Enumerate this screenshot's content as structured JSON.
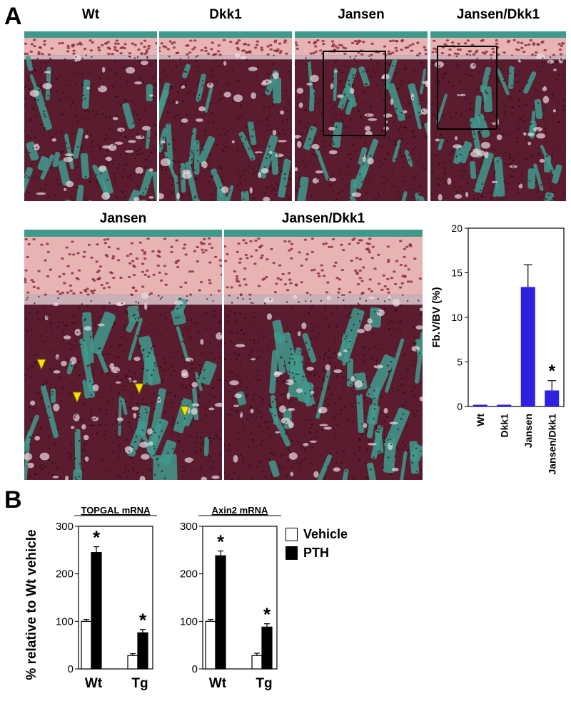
{
  "panel_a": {
    "letter": "A",
    "top_row_labels": [
      "Wt",
      "Dkk1",
      "Jansen",
      "Jansen/Dkk1"
    ],
    "middle_row_labels": [
      "Jansen",
      "Jansen/Dkk1"
    ]
  },
  "panel_b": {
    "letter": "B",
    "legend": [
      "Vehicle",
      "PTH"
    ]
  },
  "colors": {
    "stain_green": "#3f9a8c",
    "marrow": "#5a1c2e",
    "cartilage": "#e8b3b3",
    "arrow_yellow": "#f5e400",
    "bar_blue": "#2d20e0"
  },
  "chart_data": [
    {
      "type": "bar",
      "categories": [
        "Wt",
        "Dkk1",
        "Jansen",
        "Jansen/Dkk1"
      ],
      "values": [
        0.2,
        0.2,
        13.4,
        1.8
      ],
      "errors": [
        0,
        0,
        2.5,
        1.1
      ],
      "ylabel": "Fb.V/BV (%)",
      "ylim": [
        0,
        20
      ],
      "yticks": [
        "0",
        "5",
        "10",
        "15",
        "20"
      ],
      "annotations": [
        "*"
      ]
    },
    {
      "type": "bar",
      "title": "TOPGAL mRNA",
      "ylabel": "% relative to Wt vehicle",
      "categories": [
        "Wt",
        "Tg"
      ],
      "series": [
        {
          "name": "Vehicle",
          "values": [
            100,
            28
          ],
          "errors": [
            4,
            4
          ]
        },
        {
          "name": "PTH",
          "values": [
            245,
            76
          ],
          "errors": [
            12,
            7
          ]
        }
      ],
      "ylim": [
        0,
        300
      ],
      "yticks": [
        "0",
        "100",
        "200",
        "300"
      ],
      "annotations": [
        "*",
        "*"
      ]
    },
    {
      "type": "bar",
      "title": "Axin2 mRNA",
      "categories": [
        "Wt",
        "Tg"
      ],
      "series": [
        {
          "name": "Vehicle",
          "values": [
            100,
            28
          ],
          "errors": [
            4,
            5
          ]
        },
        {
          "name": "PTH",
          "values": [
            238,
            88
          ],
          "errors": [
            10,
            7
          ]
        }
      ],
      "ylim": [
        0,
        300
      ],
      "yticks": [
        "0",
        "100",
        "200",
        "300"
      ],
      "annotations": [
        "*",
        "*"
      ]
    }
  ]
}
